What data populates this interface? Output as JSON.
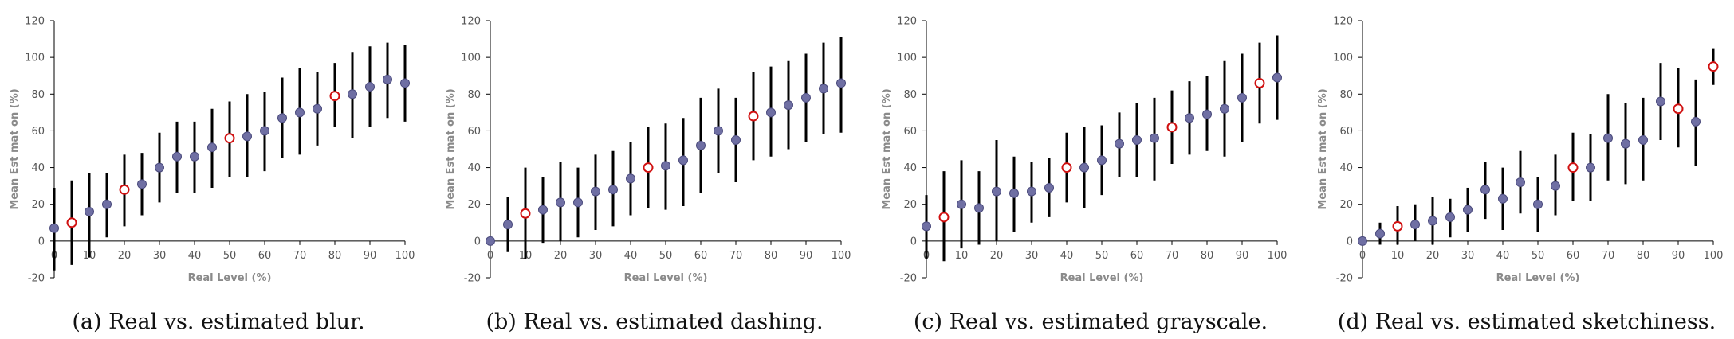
{
  "colors": {
    "point_fill": "#6f6fa3",
    "point_stroke": "#4b4b7d",
    "highlight_fill": "#ffffff",
    "highlight_stroke": "#d01010",
    "error_bar": "#000000",
    "axis": "#000000"
  },
  "chart_data": [
    {
      "type": "scatter",
      "title": "",
      "xlabel": "Real Level (%)",
      "ylabel": "Mean Est mat on (%)",
      "xlim": [
        0,
        100
      ],
      "ylim": [
        -20,
        120
      ],
      "xticks": [
        0,
        10,
        20,
        30,
        40,
        50,
        60,
        70,
        80,
        90,
        100
      ],
      "yticks": [
        -20,
        0,
        20,
        40,
        60,
        80,
        100,
        120
      ],
      "caption": "(a)  Real vs. estimated blur.",
      "series": [
        {
          "x": [
            0,
            5,
            10,
            15,
            20,
            25,
            30,
            35,
            40,
            45,
            50,
            55,
            60,
            65,
            70,
            75,
            80,
            85,
            90,
            95,
            100
          ],
          "y": [
            7,
            10,
            16,
            20,
            28,
            31,
            40,
            46,
            46,
            51,
            56,
            57,
            60,
            67,
            70,
            72,
            79,
            80,
            84,
            88,
            86
          ],
          "err_low": [
            -16,
            -13,
            -9,
            2,
            8,
            14,
            21,
            26,
            26,
            29,
            35,
            35,
            38,
            45,
            47,
            52,
            62,
            56,
            62,
            67,
            65
          ],
          "err_high": [
            29,
            33,
            37,
            37,
            47,
            48,
            59,
            65,
            65,
            72,
            76,
            80,
            81,
            89,
            94,
            92,
            97,
            103,
            106,
            108,
            107
          ],
          "highlighted": [
            5,
            20,
            50,
            80
          ]
        }
      ]
    },
    {
      "type": "scatter",
      "title": "",
      "xlabel": "Real Level (%)",
      "ylabel": "Mean Est mat on (%)",
      "xlim": [
        0,
        100
      ],
      "ylim": [
        -20,
        120
      ],
      "xticks": [
        0,
        10,
        20,
        30,
        40,
        50,
        60,
        70,
        80,
        90,
        100
      ],
      "yticks": [
        -20,
        0,
        20,
        40,
        60,
        80,
        100,
        120
      ],
      "caption": "(b)  Real vs. estimated dashing.",
      "series": [
        {
          "x": [
            0,
            5,
            10,
            15,
            20,
            25,
            30,
            35,
            40,
            45,
            50,
            55,
            60,
            65,
            70,
            75,
            80,
            85,
            90,
            95,
            100
          ],
          "y": [
            0,
            9,
            15,
            17,
            21,
            21,
            27,
            28,
            34,
            40,
            41,
            44,
            52,
            60,
            55,
            68,
            70,
            74,
            78,
            83,
            86
          ],
          "err_low": [
            0,
            -6,
            -10,
            -1,
            0,
            2,
            6,
            8,
            14,
            18,
            17,
            19,
            26,
            37,
            32,
            44,
            46,
            50,
            54,
            58,
            59
          ],
          "err_high": [
            0,
            24,
            40,
            35,
            43,
            40,
            47,
            49,
            54,
            62,
            64,
            67,
            78,
            83,
            78,
            92,
            95,
            98,
            102,
            108,
            111
          ],
          "highlighted": [
            10,
            45,
            75
          ]
        }
      ]
    },
    {
      "type": "scatter",
      "title": "",
      "xlabel": "Real Level (%)",
      "ylabel": "Mean Est mat on (%)",
      "xlim": [
        0,
        100
      ],
      "ylim": [
        -20,
        120
      ],
      "xticks": [
        0,
        10,
        20,
        30,
        40,
        50,
        60,
        70,
        80,
        90,
        100
      ],
      "yticks": [
        -20,
        0,
        20,
        40,
        60,
        80,
        100,
        120
      ],
      "caption": "(c)  Real vs. estimated grayscale.",
      "series": [
        {
          "x": [
            0,
            5,
            10,
            15,
            20,
            25,
            30,
            35,
            40,
            45,
            50,
            55,
            60,
            65,
            70,
            75,
            80,
            85,
            90,
            95,
            100
          ],
          "y": [
            8,
            13,
            20,
            18,
            27,
            26,
            27,
            29,
            40,
            40,
            44,
            53,
            55,
            56,
            62,
            67,
            69,
            72,
            78,
            86,
            89
          ],
          "err_low": [
            -10,
            -11,
            -4,
            -2,
            0,
            5,
            10,
            13,
            21,
            18,
            25,
            35,
            35,
            33,
            42,
            47,
            49,
            46,
            54,
            64,
            66
          ],
          "err_high": [
            25,
            38,
            44,
            38,
            55,
            46,
            43,
            45,
            59,
            62,
            63,
            70,
            75,
            78,
            82,
            87,
            90,
            98,
            102,
            108,
            112
          ],
          "highlighted": [
            5,
            40,
            70,
            95
          ]
        }
      ]
    },
    {
      "type": "scatter",
      "title": "",
      "xlabel": "Real Level (%)",
      "ylabel": "Mean Est mat on (%)",
      "xlim": [
        0,
        100
      ],
      "ylim": [
        -20,
        120
      ],
      "xticks": [
        0,
        10,
        20,
        30,
        40,
        50,
        60,
        70,
        80,
        90,
        100
      ],
      "yticks": [
        -20,
        0,
        20,
        40,
        60,
        80,
        100,
        120
      ],
      "caption": "(d)  Real vs. estimated sketchiness.",
      "series": [
        {
          "x": [
            0,
            5,
            10,
            15,
            20,
            25,
            30,
            35,
            40,
            45,
            50,
            55,
            60,
            65,
            70,
            75,
            80,
            85,
            90,
            95,
            100
          ],
          "y": [
            0,
            4,
            8,
            9,
            11,
            13,
            17,
            28,
            23,
            32,
            20,
            30,
            40,
            40,
            56,
            53,
            55,
            76,
            72,
            65,
            95
          ],
          "err_low": [
            0,
            -2,
            -2,
            0,
            -2,
            2,
            5,
            12,
            6,
            15,
            5,
            14,
            22,
            22,
            33,
            31,
            33,
            55,
            51,
            41,
            85
          ],
          "err_high": [
            0,
            10,
            19,
            20,
            24,
            23,
            29,
            43,
            40,
            49,
            35,
            47,
            59,
            58,
            80,
            75,
            78,
            97,
            94,
            88,
            105
          ],
          "highlighted": [
            10,
            60,
            90,
            100
          ]
        }
      ]
    }
  ]
}
